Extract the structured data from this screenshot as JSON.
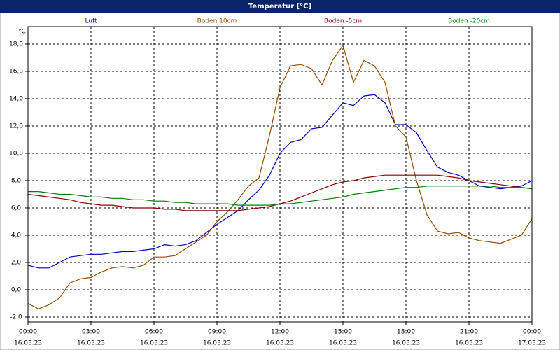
{
  "chart_data": {
    "type": "line",
    "title": "Temperatur [°C]",
    "y_unit": "°C",
    "x": [
      0,
      0.5,
      1,
      1.5,
      2,
      2.5,
      3,
      3.5,
      4,
      4.5,
      5,
      5.5,
      6,
      6.5,
      7,
      7.5,
      8,
      8.5,
      9,
      9.5,
      10,
      10.5,
      11,
      11.5,
      12,
      12.5,
      13,
      13.5,
      14,
      14.5,
      15,
      15.5,
      16,
      16.5,
      17,
      17.5,
      18,
      18.5,
      19,
      19.5,
      20,
      20.5,
      21,
      21.5,
      22,
      22.5,
      23,
      23.5,
      24
    ],
    "xlim": [
      0,
      24
    ],
    "xticks": [
      {
        "value": 0,
        "label": "00:00"
      },
      {
        "value": 3,
        "label": "03:00"
      },
      {
        "value": 6,
        "label": "06:00"
      },
      {
        "value": 9,
        "label": "09:00"
      },
      {
        "value": 12,
        "label": "12:00"
      },
      {
        "value": 15,
        "label": "15:00"
      },
      {
        "value": 18,
        "label": "18:00"
      },
      {
        "value": 21,
        "label": "21:00"
      },
      {
        "value": 24,
        "label": "00:00"
      }
    ],
    "xtick_dates": [
      "16.03.23",
      "16.03.23",
      "16.03.23",
      "16.03.23",
      "16.03.23",
      "16.03.23",
      "16.03.23",
      "16.03.23",
      "17.03.23"
    ],
    "ylim": [
      -2.36,
      19.28
    ],
    "yticks": [
      {
        "value": -2,
        "label": "-2,0"
      },
      {
        "value": 0,
        "label": "0,0"
      },
      {
        "value": 2,
        "label": "2,0"
      },
      {
        "value": 4,
        "label": "4,0"
      },
      {
        "value": 6,
        "label": "6,0"
      },
      {
        "value": 8,
        "label": "8,0"
      },
      {
        "value": 10,
        "label": "10,0"
      },
      {
        "value": 12,
        "label": "12,0"
      },
      {
        "value": 14,
        "label": "14,0"
      },
      {
        "value": 16,
        "label": "16,0"
      },
      {
        "value": 18,
        "label": "18,0"
      }
    ],
    "grid": true,
    "series": [
      {
        "name": "Luft",
        "color": "#0000cc",
        "values": [
          1.8,
          1.6,
          1.6,
          2.0,
          2.4,
          2.5,
          2.6,
          2.6,
          2.7,
          2.8,
          2.8,
          2.9,
          3.0,
          3.3,
          3.2,
          3.3,
          3.6,
          4.2,
          4.8,
          5.3,
          5.8,
          6.6,
          7.3,
          8.4,
          10.0,
          10.8,
          11.0,
          11.8,
          11.9,
          12.8,
          13.7,
          13.5,
          14.2,
          14.3,
          13.7,
          12.1,
          12.1,
          11.5,
          10.2,
          9.0,
          8.6,
          8.4,
          8.0,
          7.6,
          7.5,
          7.4,
          7.5,
          7.6,
          8.0
        ]
      },
      {
        "name": "Boden 10cm",
        "color": "#994c00",
        "values": [
          -1.0,
          -1.4,
          -1.1,
          -0.6,
          0.5,
          0.8,
          0.9,
          1.3,
          1.6,
          1.7,
          1.6,
          1.8,
          2.4,
          2.4,
          2.5,
          3.0,
          3.5,
          4.0,
          5.0,
          5.7,
          6.6,
          7.6,
          8.2,
          11.3,
          14.8,
          16.4,
          16.5,
          16.2,
          15.0,
          16.8,
          17.9,
          15.2,
          16.8,
          16.4,
          15.2,
          12.0,
          11.2,
          8.0,
          5.5,
          4.3,
          4.1,
          4.2,
          3.8,
          3.6,
          3.5,
          3.4,
          3.7,
          4.0,
          5.2
        ]
      },
      {
        "name": "Boden -5cm",
        "color": "#8b0000",
        "values": [
          7.0,
          6.9,
          6.8,
          6.7,
          6.6,
          6.4,
          6.3,
          6.2,
          6.2,
          6.1,
          6.0,
          6.0,
          6.0,
          5.9,
          5.9,
          5.8,
          5.8,
          5.8,
          5.8,
          5.8,
          5.8,
          5.9,
          6.0,
          6.1,
          6.3,
          6.5,
          6.8,
          7.1,
          7.4,
          7.7,
          7.9,
          8.0,
          8.2,
          8.3,
          8.4,
          8.4,
          8.4,
          8.4,
          8.4,
          8.4,
          8.3,
          8.2,
          8.0,
          7.9,
          7.8,
          7.7,
          7.6,
          7.5,
          7.4
        ]
      },
      {
        "name": "Boden -20cm",
        "color": "#008000",
        "values": [
          7.2,
          7.2,
          7.1,
          7.0,
          7.0,
          6.9,
          6.8,
          6.8,
          6.7,
          6.7,
          6.6,
          6.6,
          6.5,
          6.5,
          6.4,
          6.4,
          6.3,
          6.3,
          6.3,
          6.3,
          6.2,
          6.2,
          6.2,
          6.2,
          6.3,
          6.3,
          6.4,
          6.5,
          6.6,
          6.7,
          6.8,
          7.0,
          7.1,
          7.2,
          7.3,
          7.4,
          7.5,
          7.5,
          7.6,
          7.6,
          7.6,
          7.6,
          7.6,
          7.6,
          7.6,
          7.5,
          7.5,
          7.5,
          7.4
        ]
      }
    ]
  }
}
